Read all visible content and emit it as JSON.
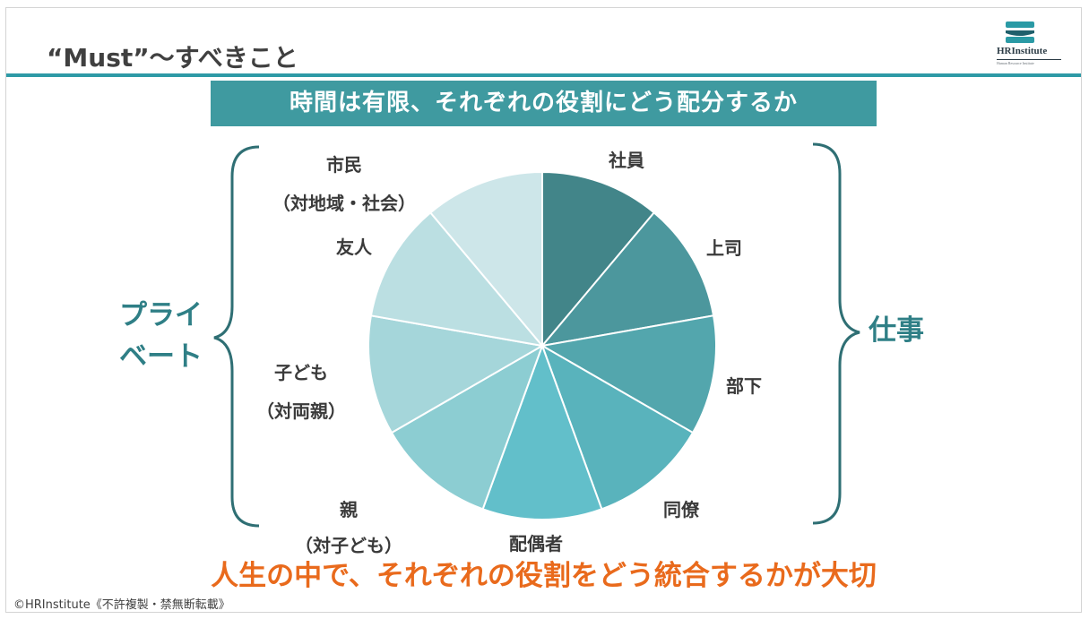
{
  "slide": {
    "title": "“Must”〜すべきこと",
    "banner": "時間は有限、それぞれの役割にどう配分するか",
    "bottom_message": "人生の中で、それぞれの役割をどう統合するかが大切",
    "copyright": "©HRInstitute《不許複製・禁無断転載》"
  },
  "logo": {
    "name": "HRInstitute",
    "subtitle": "Human Resource Institute",
    "colors": [
      "#2a9aa5",
      "#1f5f6b"
    ]
  },
  "groups": {
    "work_label": "仕事",
    "private_label_line1": "プライ",
    "private_label_line2": "ベート"
  },
  "chart_data": {
    "type": "pie",
    "slices": [
      {
        "label": "社員",
        "value": 1,
        "color": "#428589"
      },
      {
        "label": "上司",
        "value": 1,
        "color": "#4c979d"
      },
      {
        "label": "部下",
        "value": 1,
        "color": "#53a6ad"
      },
      {
        "label": "同僚",
        "value": 1,
        "color": "#59b3bc"
      },
      {
        "label": "配偶者",
        "value": 1,
        "color": "#62bfca"
      },
      {
        "label": "親",
        "label2": "（対子ども）",
        "value": 1,
        "color": "#8ccdd2"
      },
      {
        "label": "子ども",
        "label2": "（対両親）",
        "value": 1,
        "color": "#a5d6da"
      },
      {
        "label": "友人",
        "value": 1,
        "color": "#bbdfe2"
      },
      {
        "label": "市民",
        "label2": "（対地域・社会）",
        "value": 1,
        "color": "#cde6e9"
      }
    ]
  }
}
